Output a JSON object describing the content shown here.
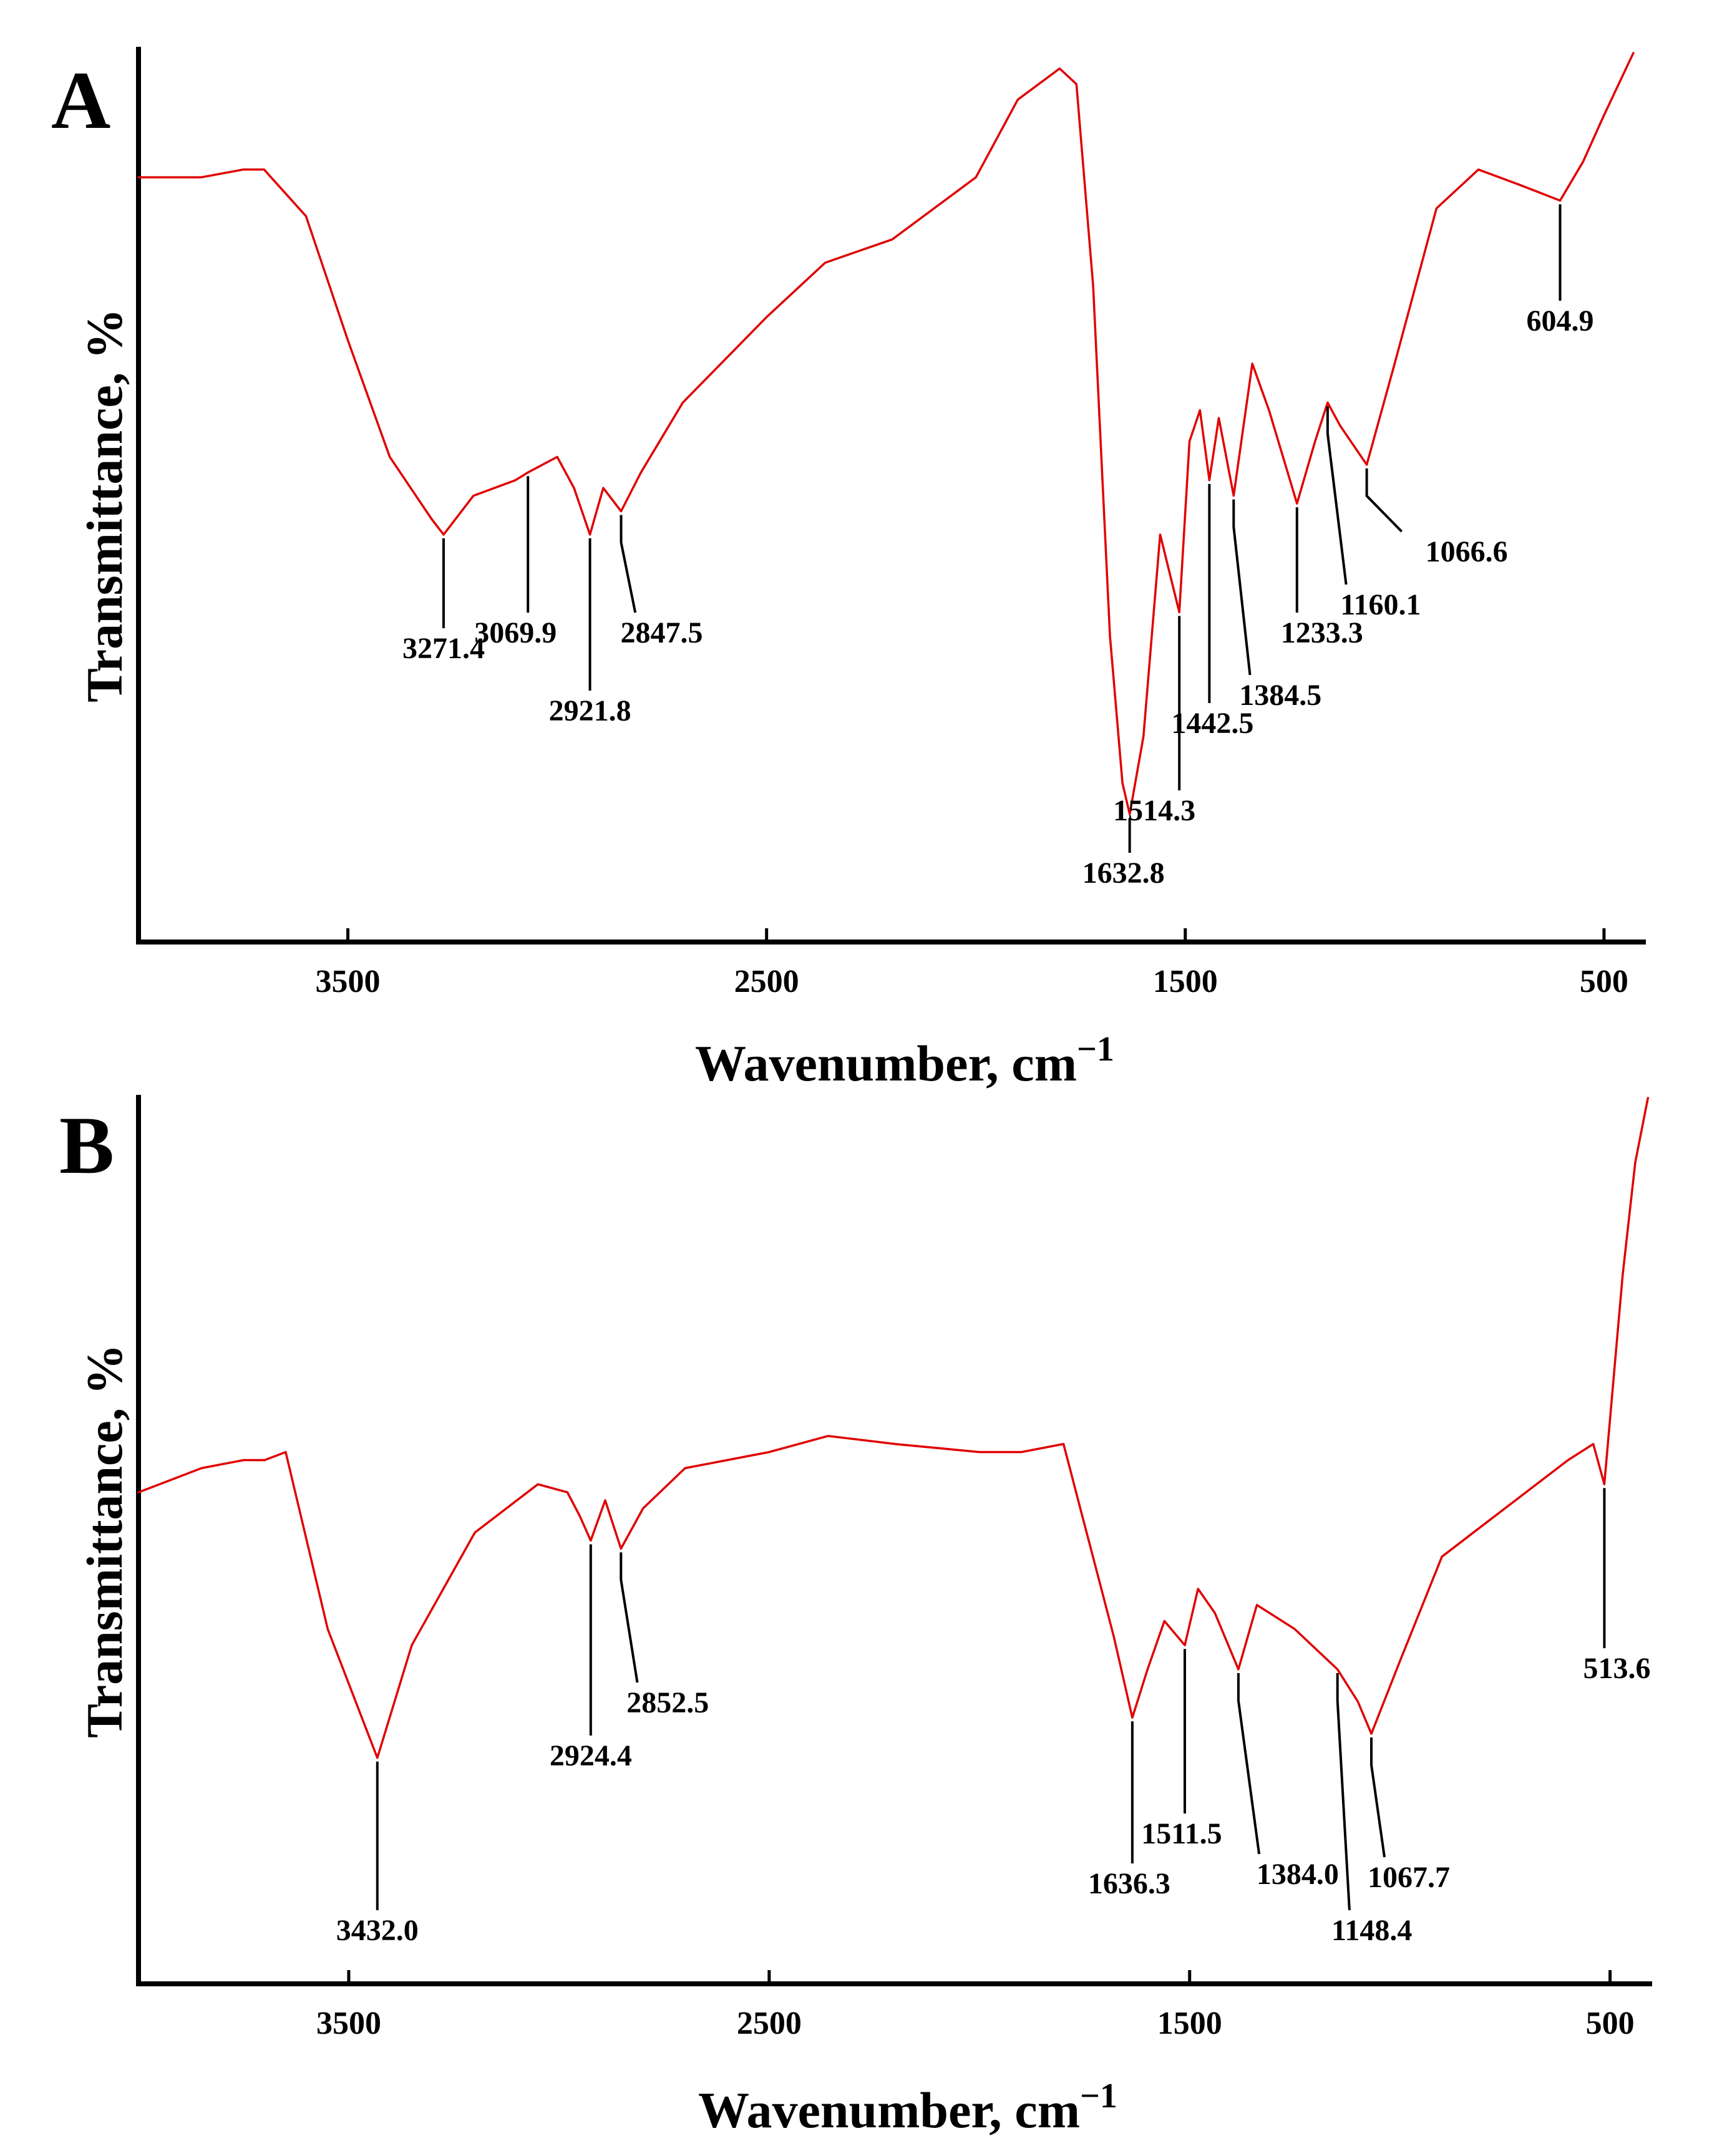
{
  "chart_data": [
    {
      "type": "line",
      "panel": "A",
      "xlabel": "Wavenumber, cm",
      "xlabel_sup": "−1",
      "ylabel": "Transmittance, %",
      "xlim": [
        4000,
        400
      ],
      "x_reversed": true,
      "xticks": [
        3500,
        2500,
        1500,
        500
      ],
      "ylim": [
        0,
        100
      ],
      "line_color": "#e00000",
      "series": [
        {
          "name": "A",
          "x": [
            4000,
            3850,
            3750,
            3700,
            3600,
            3500,
            3400,
            3300,
            3271.4,
            3200,
            3100,
            3069.9,
            3000,
            2960,
            2921.8,
            2890,
            2847.5,
            2800,
            2700,
            2500,
            2360,
            2200,
            2000,
            1900,
            1800,
            1760,
            1720,
            1680,
            1650,
            1632.8,
            1600,
            1560,
            1514.3,
            1490,
            1465,
            1442.5,
            1420,
            1384.5,
            1340,
            1300,
            1233.3,
            1190,
            1160.1,
            1130,
            1066.6,
            1000,
            900,
            800,
            700,
            604.9,
            550,
            500,
            430
          ],
          "y": [
            84,
            84,
            85,
            85,
            79,
            63,
            48,
            40,
            38,
            43,
            45,
            46,
            48,
            44,
            38,
            44,
            41,
            46,
            55,
            66,
            73,
            76,
            84,
            94,
            98,
            96,
            70,
            25,
            6,
            2,
            12,
            38,
            28,
            50,
            54,
            45,
            53,
            43,
            60,
            54,
            42,
            50,
            55,
            52,
            47,
            60,
            80,
            85,
            83,
            81,
            86,
            92,
            100
          ]
        }
      ],
      "peaks": [
        {
          "x": 3271.4,
          "label": "3271.4"
        },
        {
          "x": 3069.9,
          "label": "3069.9"
        },
        {
          "x": 2921.8,
          "label": "2921.8"
        },
        {
          "x": 2847.5,
          "label": "2847.5"
        },
        {
          "x": 1632.8,
          "label": "1632.8"
        },
        {
          "x": 1514.3,
          "label": "1514.3"
        },
        {
          "x": 1442.5,
          "label": "1442.5"
        },
        {
          "x": 1384.5,
          "label": "1384.5"
        },
        {
          "x": 1233.3,
          "label": "1233.3"
        },
        {
          "x": 1160.1,
          "label": "1160.1"
        },
        {
          "x": 1066.6,
          "label": "1066.6"
        },
        {
          "x": 604.9,
          "label": "604.9"
        }
      ]
    },
    {
      "type": "line",
      "panel": "B",
      "xlabel": "Wavenumber, cm",
      "xlabel_sup": "−1",
      "ylabel": "Transmittance, %",
      "xlim": [
        4000,
        400
      ],
      "x_reversed": true,
      "xticks": [
        3500,
        2500,
        1500,
        500
      ],
      "ylim": [
        0,
        100
      ],
      "line_color": "#e00000",
      "series": [
        {
          "name": "B",
          "x": [
            4000,
            3850,
            3750,
            3700,
            3650,
            3550,
            3432.0,
            3350,
            3200,
            3050,
            2980,
            2950,
            2924.4,
            2890,
            2852.5,
            2800,
            2700,
            2500,
            2360,
            2200,
            2000,
            1900,
            1800,
            1760,
            1720,
            1680,
            1636.3,
            1600,
            1560,
            1511.5,
            1480,
            1440,
            1384.0,
            1340,
            1250,
            1148.4,
            1100,
            1067.7,
            1000,
            900,
            800,
            700,
            600,
            540,
            513.6,
            470,
            440,
            410
          ],
          "y": [
            51,
            54,
            55,
            55,
            56,
            34,
            18,
            32,
            46,
            52,
            51,
            48,
            45,
            50,
            44,
            49,
            54,
            56,
            58,
            57,
            56,
            56,
            57,
            49,
            41,
            33,
            23,
            29,
            35,
            32,
            39,
            36,
            29,
            37,
            34,
            29,
            25,
            21,
            30,
            43,
            47,
            51,
            55,
            57,
            52,
            78,
            92,
            100
          ]
        }
      ],
      "peaks": [
        {
          "x": 3432.0,
          "label": "3432.0"
        },
        {
          "x": 2924.4,
          "label": "2924.4"
        },
        {
          "x": 2852.5,
          "label": "2852.5"
        },
        {
          "x": 1636.3,
          "label": "1636.3"
        },
        {
          "x": 1511.5,
          "label": "1511.5"
        },
        {
          "x": 1384.0,
          "label": "1384.0"
        },
        {
          "x": 1148.4,
          "label": "1148.4"
        },
        {
          "x": 1067.7,
          "label": "1067.7"
        },
        {
          "x": 513.6,
          "label": "513.6"
        }
      ]
    }
  ]
}
